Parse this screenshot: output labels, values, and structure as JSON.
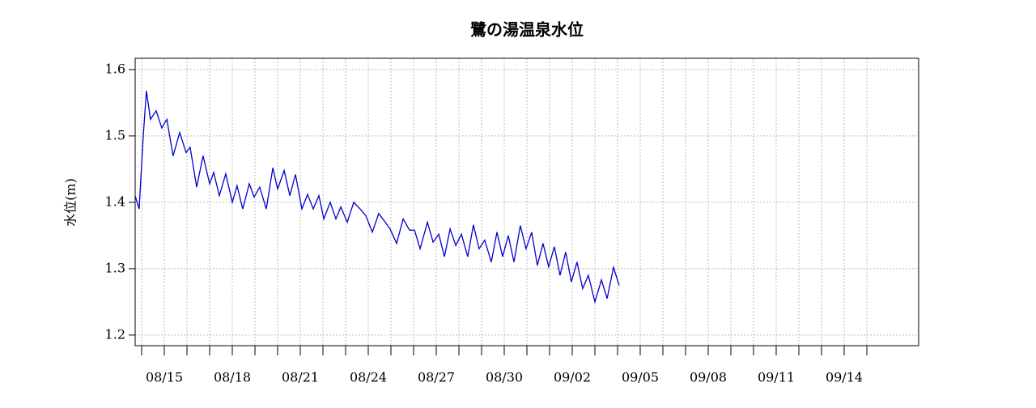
{
  "chart_data": {
    "type": "line",
    "title": "鷺の湯温泉水位",
    "ylabel": "水位(m)",
    "color": "#0000cc",
    "grid": true,
    "x": [
      13.71,
      13.89,
      14.07,
      14.21,
      14.39,
      14.64,
      14.89,
      15.11,
      15.39,
      15.68,
      15.96,
      16.14,
      16.43,
      16.71,
      17.0,
      17.18,
      17.43,
      17.71,
      18.0,
      18.21,
      18.46,
      18.75,
      18.96,
      19.21,
      19.5,
      19.79,
      20.0,
      20.29,
      20.54,
      20.79,
      21.07,
      21.32,
      21.57,
      21.82,
      22.04,
      22.32,
      22.57,
      22.79,
      23.07,
      23.36,
      23.64,
      23.89,
      24.18,
      24.46,
      24.75,
      24.96,
      25.25,
      25.54,
      25.82,
      26.04,
      26.29,
      26.61,
      26.86,
      27.11,
      27.36,
      27.61,
      27.86,
      28.11,
      28.39,
      28.64,
      28.89,
      29.14,
      29.43,
      29.68,
      29.93,
      30.18,
      30.43,
      30.71,
      30.96,
      31.21,
      31.46,
      31.71,
      31.96,
      32.21,
      32.46,
      32.71,
      32.96,
      33.21,
      33.46,
      33.71,
      34.0,
      34.29,
      34.54,
      34.82,
      35.07
    ],
    "values": [
      1.41,
      1.39,
      1.5,
      1.568,
      1.525,
      1.538,
      1.512,
      1.525,
      1.47,
      1.505,
      1.475,
      1.483,
      1.423,
      1.47,
      1.428,
      1.445,
      1.41,
      1.443,
      1.4,
      1.425,
      1.39,
      1.428,
      1.408,
      1.423,
      1.39,
      1.452,
      1.42,
      1.448,
      1.41,
      1.442,
      1.39,
      1.412,
      1.39,
      1.41,
      1.375,
      1.4,
      1.375,
      1.393,
      1.37,
      1.4,
      1.39,
      1.38,
      1.355,
      1.383,
      1.37,
      1.36,
      1.338,
      1.375,
      1.358,
      1.358,
      1.33,
      1.37,
      1.34,
      1.352,
      1.318,
      1.36,
      1.335,
      1.352,
      1.318,
      1.366,
      1.33,
      1.343,
      1.31,
      1.355,
      1.318,
      1.35,
      1.31,
      1.365,
      1.33,
      1.355,
      1.305,
      1.338,
      1.303,
      1.333,
      1.29,
      1.325,
      1.28,
      1.31,
      1.27,
      1.29,
      1.25,
      1.283,
      1.255,
      1.302,
      1.275
    ],
    "xlim": [
      13.714,
      48.286
    ],
    "xticks": [
      {
        "value": 15,
        "label": "08/15"
      },
      {
        "value": 18,
        "label": "08/18"
      },
      {
        "value": 21,
        "label": "08/21"
      },
      {
        "value": 24,
        "label": "08/24"
      },
      {
        "value": 27,
        "label": "08/27"
      },
      {
        "value": 30,
        "label": "08/30"
      },
      {
        "value": 33,
        "label": "09/02"
      },
      {
        "value": 36,
        "label": "09/05"
      },
      {
        "value": 39,
        "label": "09/08"
      },
      {
        "value": 42,
        "label": "09/11"
      },
      {
        "value": 45,
        "label": "09/14"
      }
    ],
    "xminorticks": [
      14,
      15,
      16,
      17,
      18,
      19,
      20,
      21,
      22,
      23,
      24,
      25,
      26,
      27,
      28,
      29,
      30,
      31,
      32,
      33,
      34,
      35,
      36,
      37,
      38,
      39,
      40,
      41,
      42,
      43,
      44,
      45,
      46
    ],
    "ylim": [
      1.184,
      1.617
    ],
    "yticks": [
      1.2,
      1.3,
      1.4,
      1.5,
      1.6
    ]
  }
}
